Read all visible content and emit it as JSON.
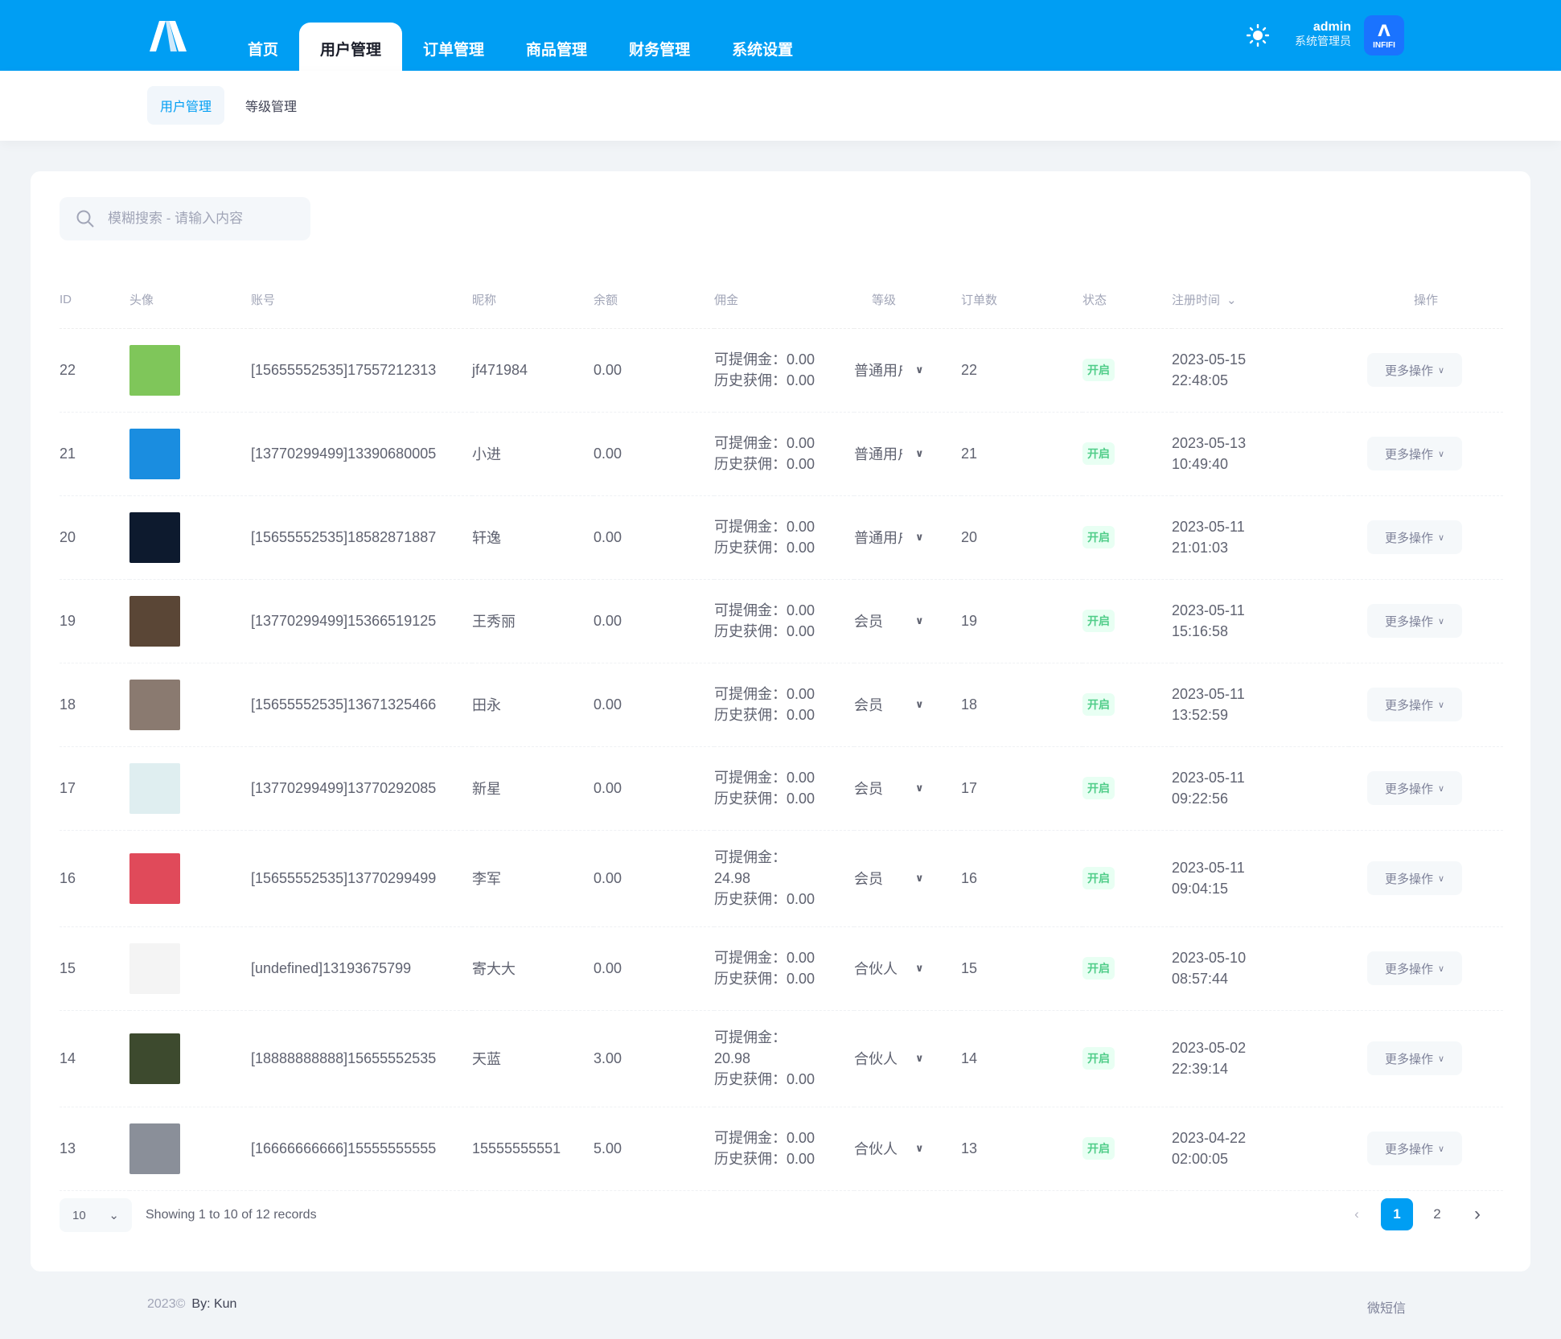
{
  "header": {
    "nav": [
      "首页",
      "用户管理",
      "订单管理",
      "商品管理",
      "财务管理",
      "系统设置"
    ],
    "active_nav": 1,
    "user_name": "admin",
    "user_role": "系统管理员",
    "avatar_text": "INFIFI",
    "brand_color": "#009ef3"
  },
  "subnav": [
    "用户管理",
    "等级管理"
  ],
  "search": {
    "placeholder": "模糊搜索 - 请输入内容"
  },
  "table": {
    "columns": [
      "ID",
      "头像",
      "账号",
      "昵称",
      "余额",
      "佣金",
      "等级",
      "订单数",
      "状态",
      "注册时间",
      "操作"
    ],
    "sort_indicator": "⌄",
    "commission_labels": {
      "withdrawable": "可提佣金：",
      "history": "历史获佣："
    },
    "action_label": "更多操作",
    "rows": [
      {
        "id": "22",
        "avatar_color": "#7fc65a",
        "account": "[15655552535]17557212313",
        "nickname": "jf471984",
        "balance": "0.00",
        "withdrawable": "0.00",
        "history": "0.00",
        "level": "普通用户",
        "orders": "22",
        "status": "开启",
        "date": "2023-05-15",
        "time": "22:48:05"
      },
      {
        "id": "21",
        "avatar_color": "#1a8de0",
        "account": "[13770299499]13390680005",
        "nickname": "小进",
        "balance": "0.00",
        "withdrawable": "0.00",
        "history": "0.00",
        "level": "普通用户",
        "orders": "21",
        "status": "开启",
        "date": "2023-05-13",
        "time": "10:49:40"
      },
      {
        "id": "20",
        "avatar_color": "#0d1a2e",
        "account": "[15655552535]18582871887",
        "nickname": "轩逸",
        "balance": "0.00",
        "withdrawable": "0.00",
        "history": "0.00",
        "level": "普通用户",
        "orders": "20",
        "status": "开启",
        "date": "2023-05-11",
        "time": "21:01:03"
      },
      {
        "id": "19",
        "avatar_color": "#5a4636",
        "account": "[13770299499]15366519125",
        "nickname": "王秀丽",
        "balance": "0.00",
        "withdrawable": "0.00",
        "history": "0.00",
        "level": "会员",
        "orders": "19",
        "status": "开启",
        "date": "2023-05-11",
        "time": "15:16:58"
      },
      {
        "id": "18",
        "avatar_color": "#8a7a70",
        "account": "[15655552535]13671325466",
        "nickname": "田永",
        "balance": "0.00",
        "withdrawable": "0.00",
        "history": "0.00",
        "level": "会员",
        "orders": "18",
        "status": "开启",
        "date": "2023-05-11",
        "time": "13:52:59"
      },
      {
        "id": "17",
        "avatar_color": "#dfeef0",
        "account": "[13770299499]13770292085",
        "nickname": "新星",
        "balance": "0.00",
        "withdrawable": "0.00",
        "history": "0.00",
        "level": "会员",
        "orders": "17",
        "status": "开启",
        "date": "2023-05-11",
        "time": "09:22:56"
      },
      {
        "id": "16",
        "avatar_color": "#e04a5a",
        "account": "[15655552535]13770299499",
        "nickname": "李军",
        "balance": "0.00",
        "withdrawable": "24.98",
        "history": "0.00",
        "level": "会员",
        "orders": "16",
        "status": "开启",
        "date": "2023-05-11",
        "time": "09:04:15"
      },
      {
        "id": "15",
        "avatar_color": "#f4f4f4",
        "account": "[undefined]13193675799",
        "nickname": "寄大大",
        "balance": "0.00",
        "withdrawable": "0.00",
        "history": "0.00",
        "level": "合伙人",
        "orders": "15",
        "status": "开启",
        "date": "2023-05-10",
        "time": "08:57:44"
      },
      {
        "id": "14",
        "avatar_color": "#3d4a2e",
        "account": "[18888888888]15655552535",
        "nickname": "天蓝",
        "balance": "3.00",
        "withdrawable": "20.98",
        "history": "0.00",
        "level": "合伙人",
        "orders": "14",
        "status": "开启",
        "date": "2023-05-02",
        "time": "22:39:14"
      },
      {
        "id": "13",
        "avatar_color": "#8a8f99",
        "account": "[16666666666]15555555555",
        "nickname": "15555555551",
        "balance": "5.00",
        "withdrawable": "0.00",
        "history": "0.00",
        "level": "合伙人",
        "orders": "13",
        "status": "开启",
        "date": "2023-04-22",
        "time": "02:00:05"
      }
    ]
  },
  "pagination": {
    "page_size": "10",
    "summary": "Showing 1 to 10 of 12 records",
    "pages": [
      "1",
      "2"
    ],
    "current": "1"
  },
  "footer": {
    "copyright": "2023©",
    "by": "By:  Kun",
    "right": "微短信"
  }
}
